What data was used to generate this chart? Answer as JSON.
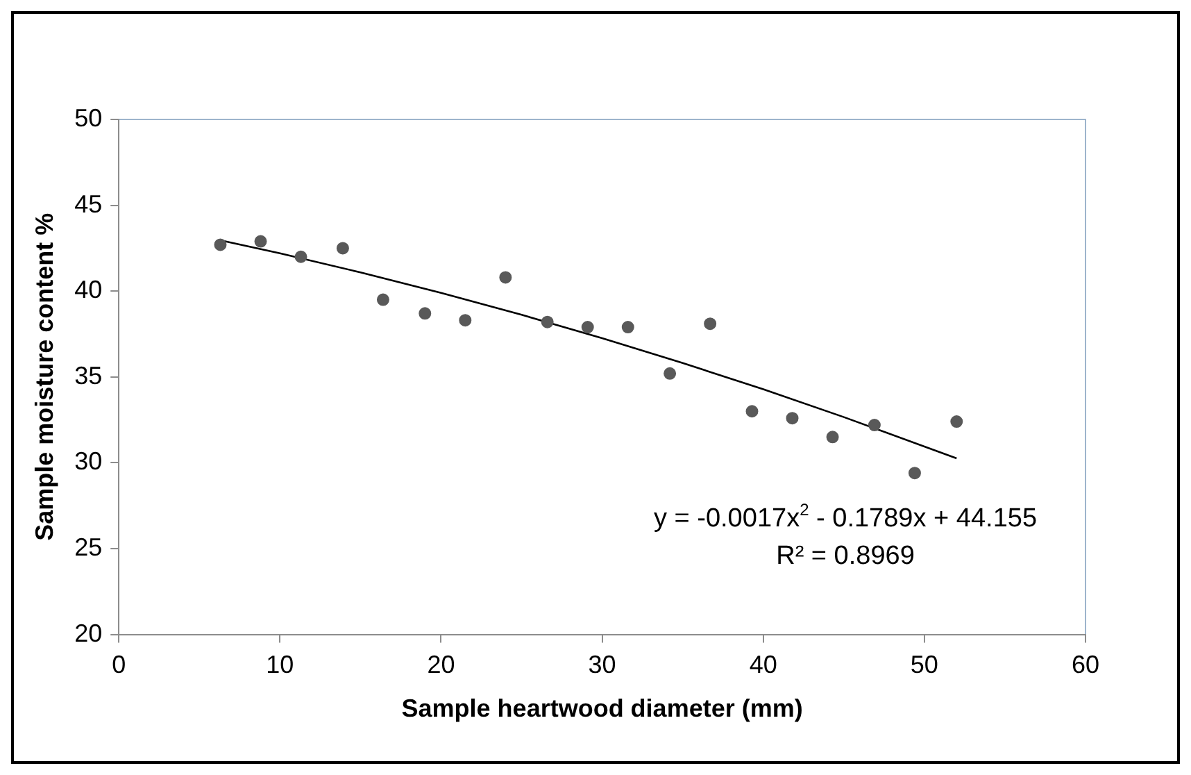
{
  "chart_data": {
    "type": "scatter",
    "xlabel": "Sample heartwood diameter (mm)",
    "ylabel": "Sample moisture content %",
    "xlim": [
      0,
      60
    ],
    "xticks": [
      0,
      10,
      20,
      30,
      40,
      50,
      60
    ],
    "ylim": [
      20,
      50
    ],
    "yticks": [
      20,
      25,
      30,
      35,
      40,
      45,
      50
    ],
    "grid": false,
    "legend": false,
    "marker": "circle",
    "series": [
      {
        "type": "scatter",
        "color": "#595959",
        "x": [
          6.3,
          8.8,
          11.3,
          13.9,
          16.4,
          19,
          21.5,
          24,
          26.6,
          29.1,
          31.6,
          34.2,
          36.7,
          39.3,
          41.8,
          44.3,
          46.9,
          49.4,
          52
        ],
        "values": [
          42.7,
          42.9,
          42.0,
          42.5,
          39.5,
          38.7,
          38.3,
          40.8,
          38.2,
          37.9,
          37.9,
          35.2,
          38.1,
          33.0,
          32.6,
          31.5,
          32.2,
          29.4,
          32.4
        ]
      },
      {
        "type": "line",
        "color": "#000000",
        "marker": "none",
        "x": [
          6.3,
          10,
          15,
          20,
          25,
          30,
          35,
          40,
          45,
          52
        ],
        "values": [
          42.96,
          42.2,
          41.09,
          39.9,
          38.62,
          37.26,
          35.81,
          34.28,
          32.66,
          30.26
        ]
      }
    ],
    "annotations": [
      "y = -0.0017x$^{2}$ - 0.1789x + 44.155",
      "R² = 0.8969"
    ]
  }
}
